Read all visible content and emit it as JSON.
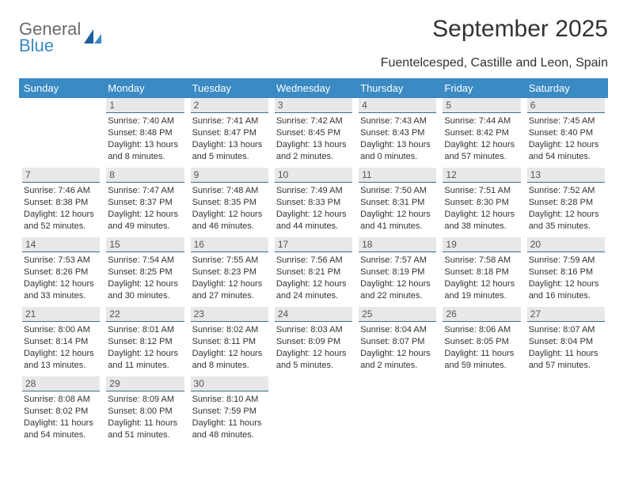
{
  "logo": {
    "word1": "General",
    "word2": "Blue"
  },
  "title": "September 2025",
  "location": "Fuentelcesped, Castille and Leon, Spain",
  "colors": {
    "header_bg": "#3a8ac4",
    "header_text": "#ffffff",
    "daynum_bg": "#e8e8e8",
    "daynum_border": "#3a6d8f",
    "body_text": "#333333",
    "logo_gray": "#6b6b6b",
    "logo_blue": "#3a8ac4",
    "page_bg": "#ffffff"
  },
  "typography": {
    "title_fontsize": 30,
    "location_fontsize": 16,
    "header_fontsize": 13,
    "daynum_fontsize": 12,
    "info_fontsize": 11
  },
  "weekday_headers": [
    "Sunday",
    "Monday",
    "Tuesday",
    "Wednesday",
    "Thursday",
    "Friday",
    "Saturday"
  ],
  "weeks": [
    [
      {
        "blank": true
      },
      {
        "n": "1",
        "sunrise": "Sunrise: 7:40 AM",
        "sunset": "Sunset: 8:48 PM",
        "day1": "Daylight: 13 hours",
        "day2": "and 8 minutes."
      },
      {
        "n": "2",
        "sunrise": "Sunrise: 7:41 AM",
        "sunset": "Sunset: 8:47 PM",
        "day1": "Daylight: 13 hours",
        "day2": "and 5 minutes."
      },
      {
        "n": "3",
        "sunrise": "Sunrise: 7:42 AM",
        "sunset": "Sunset: 8:45 PM",
        "day1": "Daylight: 13 hours",
        "day2": "and 2 minutes."
      },
      {
        "n": "4",
        "sunrise": "Sunrise: 7:43 AM",
        "sunset": "Sunset: 8:43 PM",
        "day1": "Daylight: 13 hours",
        "day2": "and 0 minutes."
      },
      {
        "n": "5",
        "sunrise": "Sunrise: 7:44 AM",
        "sunset": "Sunset: 8:42 PM",
        "day1": "Daylight: 12 hours",
        "day2": "and 57 minutes."
      },
      {
        "n": "6",
        "sunrise": "Sunrise: 7:45 AM",
        "sunset": "Sunset: 8:40 PM",
        "day1": "Daylight: 12 hours",
        "day2": "and 54 minutes."
      }
    ],
    [
      {
        "n": "7",
        "sunrise": "Sunrise: 7:46 AM",
        "sunset": "Sunset: 8:38 PM",
        "day1": "Daylight: 12 hours",
        "day2": "and 52 minutes."
      },
      {
        "n": "8",
        "sunrise": "Sunrise: 7:47 AM",
        "sunset": "Sunset: 8:37 PM",
        "day1": "Daylight: 12 hours",
        "day2": "and 49 minutes."
      },
      {
        "n": "9",
        "sunrise": "Sunrise: 7:48 AM",
        "sunset": "Sunset: 8:35 PM",
        "day1": "Daylight: 12 hours",
        "day2": "and 46 minutes."
      },
      {
        "n": "10",
        "sunrise": "Sunrise: 7:49 AM",
        "sunset": "Sunset: 8:33 PM",
        "day1": "Daylight: 12 hours",
        "day2": "and 44 minutes."
      },
      {
        "n": "11",
        "sunrise": "Sunrise: 7:50 AM",
        "sunset": "Sunset: 8:31 PM",
        "day1": "Daylight: 12 hours",
        "day2": "and 41 minutes."
      },
      {
        "n": "12",
        "sunrise": "Sunrise: 7:51 AM",
        "sunset": "Sunset: 8:30 PM",
        "day1": "Daylight: 12 hours",
        "day2": "and 38 minutes."
      },
      {
        "n": "13",
        "sunrise": "Sunrise: 7:52 AM",
        "sunset": "Sunset: 8:28 PM",
        "day1": "Daylight: 12 hours",
        "day2": "and 35 minutes."
      }
    ],
    [
      {
        "n": "14",
        "sunrise": "Sunrise: 7:53 AM",
        "sunset": "Sunset: 8:26 PM",
        "day1": "Daylight: 12 hours",
        "day2": "and 33 minutes."
      },
      {
        "n": "15",
        "sunrise": "Sunrise: 7:54 AM",
        "sunset": "Sunset: 8:25 PM",
        "day1": "Daylight: 12 hours",
        "day2": "and 30 minutes."
      },
      {
        "n": "16",
        "sunrise": "Sunrise: 7:55 AM",
        "sunset": "Sunset: 8:23 PM",
        "day1": "Daylight: 12 hours",
        "day2": "and 27 minutes."
      },
      {
        "n": "17",
        "sunrise": "Sunrise: 7:56 AM",
        "sunset": "Sunset: 8:21 PM",
        "day1": "Daylight: 12 hours",
        "day2": "and 24 minutes."
      },
      {
        "n": "18",
        "sunrise": "Sunrise: 7:57 AM",
        "sunset": "Sunset: 8:19 PM",
        "day1": "Daylight: 12 hours",
        "day2": "and 22 minutes."
      },
      {
        "n": "19",
        "sunrise": "Sunrise: 7:58 AM",
        "sunset": "Sunset: 8:18 PM",
        "day1": "Daylight: 12 hours",
        "day2": "and 19 minutes."
      },
      {
        "n": "20",
        "sunrise": "Sunrise: 7:59 AM",
        "sunset": "Sunset: 8:16 PM",
        "day1": "Daylight: 12 hours",
        "day2": "and 16 minutes."
      }
    ],
    [
      {
        "n": "21",
        "sunrise": "Sunrise: 8:00 AM",
        "sunset": "Sunset: 8:14 PM",
        "day1": "Daylight: 12 hours",
        "day2": "and 13 minutes."
      },
      {
        "n": "22",
        "sunrise": "Sunrise: 8:01 AM",
        "sunset": "Sunset: 8:12 PM",
        "day1": "Daylight: 12 hours",
        "day2": "and 11 minutes."
      },
      {
        "n": "23",
        "sunrise": "Sunrise: 8:02 AM",
        "sunset": "Sunset: 8:11 PM",
        "day1": "Daylight: 12 hours",
        "day2": "and 8 minutes."
      },
      {
        "n": "24",
        "sunrise": "Sunrise: 8:03 AM",
        "sunset": "Sunset: 8:09 PM",
        "day1": "Daylight: 12 hours",
        "day2": "and 5 minutes."
      },
      {
        "n": "25",
        "sunrise": "Sunrise: 8:04 AM",
        "sunset": "Sunset: 8:07 PM",
        "day1": "Daylight: 12 hours",
        "day2": "and 2 minutes."
      },
      {
        "n": "26",
        "sunrise": "Sunrise: 8:06 AM",
        "sunset": "Sunset: 8:05 PM",
        "day1": "Daylight: 11 hours",
        "day2": "and 59 minutes."
      },
      {
        "n": "27",
        "sunrise": "Sunrise: 8:07 AM",
        "sunset": "Sunset: 8:04 PM",
        "day1": "Daylight: 11 hours",
        "day2": "and 57 minutes."
      }
    ],
    [
      {
        "n": "28",
        "sunrise": "Sunrise: 8:08 AM",
        "sunset": "Sunset: 8:02 PM",
        "day1": "Daylight: 11 hours",
        "day2": "and 54 minutes."
      },
      {
        "n": "29",
        "sunrise": "Sunrise: 8:09 AM",
        "sunset": "Sunset: 8:00 PM",
        "day1": "Daylight: 11 hours",
        "day2": "and 51 minutes."
      },
      {
        "n": "30",
        "sunrise": "Sunrise: 8:10 AM",
        "sunset": "Sunset: 7:59 PM",
        "day1": "Daylight: 11 hours",
        "day2": "and 48 minutes."
      },
      {
        "blank": true
      },
      {
        "blank": true
      },
      {
        "blank": true
      },
      {
        "blank": true
      }
    ]
  ]
}
